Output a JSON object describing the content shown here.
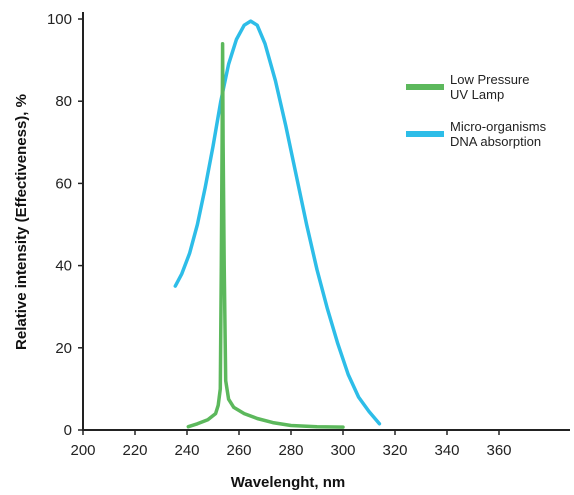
{
  "chart_data": {
    "type": "line",
    "title": "",
    "xlabel": "Wavelenght, nm",
    "ylabel": "Relative intensity (Effectiveness), %",
    "xlim": [
      200,
      370
    ],
    "ylim": [
      0,
      100
    ],
    "x_ticks": [
      200,
      220,
      240,
      260,
      280,
      300,
      320,
      340,
      360
    ],
    "y_ticks": [
      0,
      20,
      40,
      60,
      80,
      100
    ],
    "grid": false,
    "legend_position": "top-right",
    "series": [
      {
        "name": "Low Pressure UV Lamp",
        "color": "#5cb85c",
        "points": [
          [
            240.5,
            0.8
          ],
          [
            244,
            1.5
          ],
          [
            248,
            2.5
          ],
          [
            251,
            4
          ],
          [
            252,
            6
          ],
          [
            252.8,
            10
          ],
          [
            253.2,
            40
          ],
          [
            253.5,
            70
          ],
          [
            253.7,
            94
          ],
          [
            253.9,
            70
          ],
          [
            254.3,
            40
          ],
          [
            254.9,
            12
          ],
          [
            256,
            7.5
          ],
          [
            258,
            5.5
          ],
          [
            262,
            4
          ],
          [
            267,
            2.8
          ],
          [
            273,
            1.8
          ],
          [
            280,
            1.1
          ],
          [
            290,
            0.8
          ],
          [
            300,
            0.7
          ]
        ]
      },
      {
        "name": "Micro-organisms DNA absorption",
        "color": "#2dbde8",
        "points": [
          [
            235.5,
            35
          ],
          [
            238,
            38
          ],
          [
            241,
            43
          ],
          [
            244,
            50
          ],
          [
            247,
            59
          ],
          [
            250,
            69
          ],
          [
            253,
            80
          ],
          [
            256,
            89
          ],
          [
            259,
            95
          ],
          [
            262,
            98.5
          ],
          [
            264.5,
            99.5
          ],
          [
            267,
            98.5
          ],
          [
            270,
            94
          ],
          [
            274,
            85
          ],
          [
            278,
            74
          ],
          [
            282,
            62
          ],
          [
            286,
            50
          ],
          [
            290,
            39
          ],
          [
            294,
            29.5
          ],
          [
            298,
            21
          ],
          [
            302,
            13.5
          ],
          [
            306,
            8
          ],
          [
            310,
            4.5
          ],
          [
            314,
            1.5
          ]
        ]
      }
    ],
    "legend": [
      {
        "label_lines": [
          "Low Pressure",
          "UV Lamp"
        ],
        "color": "#5cb85c"
      },
      {
        "label_lines": [
          "Micro-organisms",
          "DNA absorption"
        ],
        "color": "#2dbde8"
      }
    ]
  }
}
